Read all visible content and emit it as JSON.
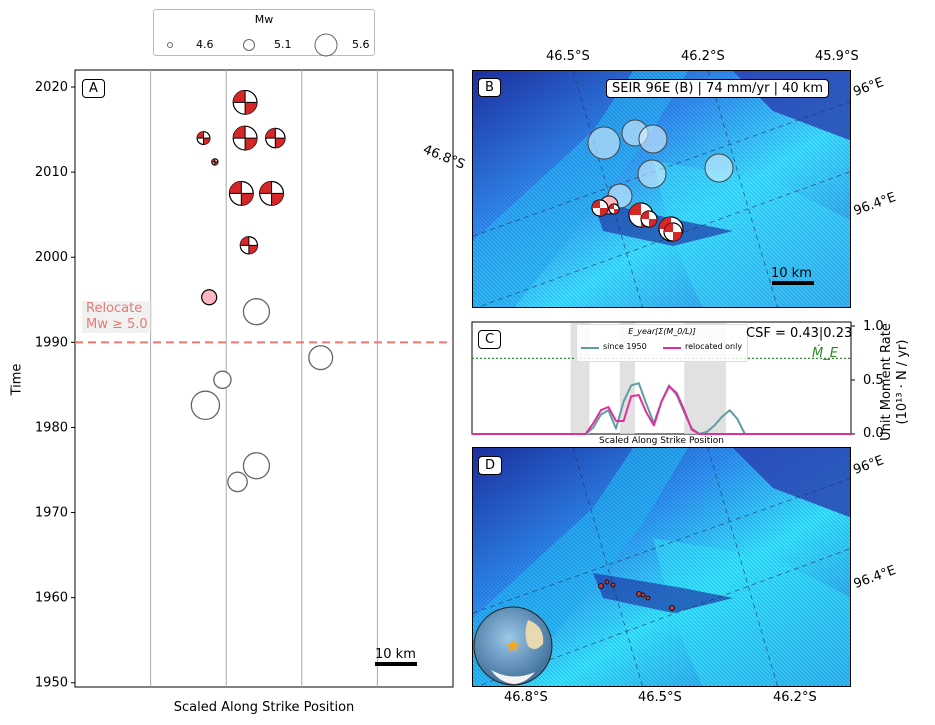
{
  "legend": {
    "title": "Mw",
    "entries": [
      {
        "label": "4.6",
        "mw": 4.6
      },
      {
        "label": "5.1",
        "mw": 5.1
      },
      {
        "label": "5.6",
        "mw": 5.6
      }
    ]
  },
  "panels": {
    "A": {
      "label": "A",
      "xlabel": "Scaled Along Strike Position",
      "ylabel": "Time",
      "scalebar": "10 km",
      "relocate_line1": "Relocate",
      "relocate_line2": "Mw ≥ 5.0"
    },
    "B": {
      "label": "B",
      "title": "SEIR 96E (B) | 74 mm/yr | 40 km",
      "scalebar": "10 km",
      "top_ticks": [
        "46.5°S",
        "46.2°S",
        "45.9°S"
      ],
      "right_ticks": [
        "96°E",
        "96.4°E"
      ],
      "left_tick": "46.8°S"
    },
    "C": {
      "label": "C",
      "csf": "CSF = 0.43|0.23",
      "me_label": "Ṁ_E",
      "legend_title": "E_year[Σ(M_0/L)]",
      "series_names": [
        "since 1950",
        "relocated only"
      ],
      "xlabel": "Scaled Along Strike Position",
      "ylabel_line1": "Unit Moment Rate",
      "ylabel_line2": "(10¹³ · N / yr)",
      "yticks": [
        "0.0",
        "0.5",
        "1.0"
      ]
    },
    "D": {
      "label": "D",
      "bottom_ticks": [
        "46.8°S",
        "46.5°S",
        "46.2°S"
      ],
      "right_ticks": [
        "96°E",
        "96.4°E"
      ]
    }
  },
  "colors": {
    "relocate_line": "#e87a72",
    "focal_fill": "#d62728",
    "pink_event": "#ffb6c1",
    "since_1950": "#5f9ea0",
    "relocated_only": "#e0309a",
    "me_line": "#2e8b2e",
    "ocean_shallow": "#39e6ff",
    "ocean_deep": "#1c2f9e"
  },
  "chart_data": [
    {
      "type": "scatter",
      "panel": "A",
      "xlabel": "Scaled Along Strike Position",
      "ylabel": "Time",
      "ylim": [
        1949.5,
        2022
      ],
      "xlim": [
        0,
        1
      ],
      "yticks": [
        1950,
        1960,
        1970,
        1980,
        1990,
        2000,
        2010,
        2020
      ],
      "grid_x": [
        0.2,
        0.4,
        0.6,
        0.8
      ],
      "relocate_threshold_year": 1990,
      "series": [
        {
          "name": "",
          "kind": "focal_mechanism",
          "points": [
            {
              "x": 0.45,
              "y": 2018.2,
              "mw": 5.4
            },
            {
              "x": 0.34,
              "y": 2014.0,
              "mw": 4.9
            },
            {
              "x": 0.45,
              "y": 2014.0,
              "mw": 5.4
            },
            {
              "x": 0.53,
              "y": 2014.0,
              "mw": 5.2
            },
            {
              "x": 0.37,
              "y": 2011.2,
              "mw": 4.6
            },
            {
              "x": 0.44,
              "y": 2007.5,
              "mw": 5.4
            },
            {
              "x": 0.52,
              "y": 2007.5,
              "mw": 5.4
            },
            {
              "x": 0.46,
              "y": 2001.4,
              "mw": 5.1
            }
          ]
        },
        {
          "name": "",
          "kind": "relocated_no_mechanism",
          "points": [
            {
              "x": 0.355,
              "y": 1995.3,
              "mw": 5.0
            }
          ]
        },
        {
          "name": "",
          "kind": "catalog_event",
          "points": [
            {
              "x": 0.48,
              "y": 1993.6,
              "mw": 5.5
            },
            {
              "x": 0.65,
              "y": 1988.2,
              "mw": 5.4
            },
            {
              "x": 0.39,
              "y": 1985.6,
              "mw": 5.1
            },
            {
              "x": 0.345,
              "y": 1982.6,
              "mw": 5.6
            },
            {
              "x": 0.48,
              "y": 1975.5,
              "mw": 5.5
            },
            {
              "x": 0.43,
              "y": 1973.6,
              "mw": 5.2
            }
          ]
        }
      ]
    },
    {
      "type": "line",
      "panel": "C",
      "xlabel": "Scaled Along Strike Position",
      "ylabel": "Unit Moment Rate (10¹³ · N / yr)",
      "ylim": [
        0,
        1.0
      ],
      "xlim": [
        0,
        1
      ],
      "me_level": 0.7,
      "shaded_spans": [
        [
          0.26,
          0.31
        ],
        [
          0.39,
          0.43
        ],
        [
          0.56,
          0.67
        ]
      ],
      "x": [
        0.0,
        0.3,
        0.32,
        0.34,
        0.36,
        0.38,
        0.4,
        0.42,
        0.44,
        0.46,
        0.48,
        0.5,
        0.52,
        0.54,
        0.56,
        0.58,
        0.6,
        0.62,
        0.64,
        0.66,
        0.68,
        0.7,
        0.72,
        1.0
      ],
      "series": [
        {
          "name": "since 1950",
          "values": [
            0,
            0,
            0.06,
            0.18,
            0.22,
            0.05,
            0.3,
            0.45,
            0.47,
            0.28,
            0.1,
            0.3,
            0.45,
            0.36,
            0.2,
            0.05,
            0,
            0.02,
            0.08,
            0.16,
            0.22,
            0.14,
            0,
            0
          ]
        },
        {
          "name": "relocated only",
          "values": [
            0,
            0,
            0.1,
            0.22,
            0.25,
            0.12,
            0.12,
            0.35,
            0.36,
            0.2,
            0.08,
            0.3,
            0.44,
            0.38,
            0.22,
            0.04,
            0,
            0,
            0,
            0,
            0,
            0,
            0,
            0
          ]
        }
      ]
    }
  ]
}
